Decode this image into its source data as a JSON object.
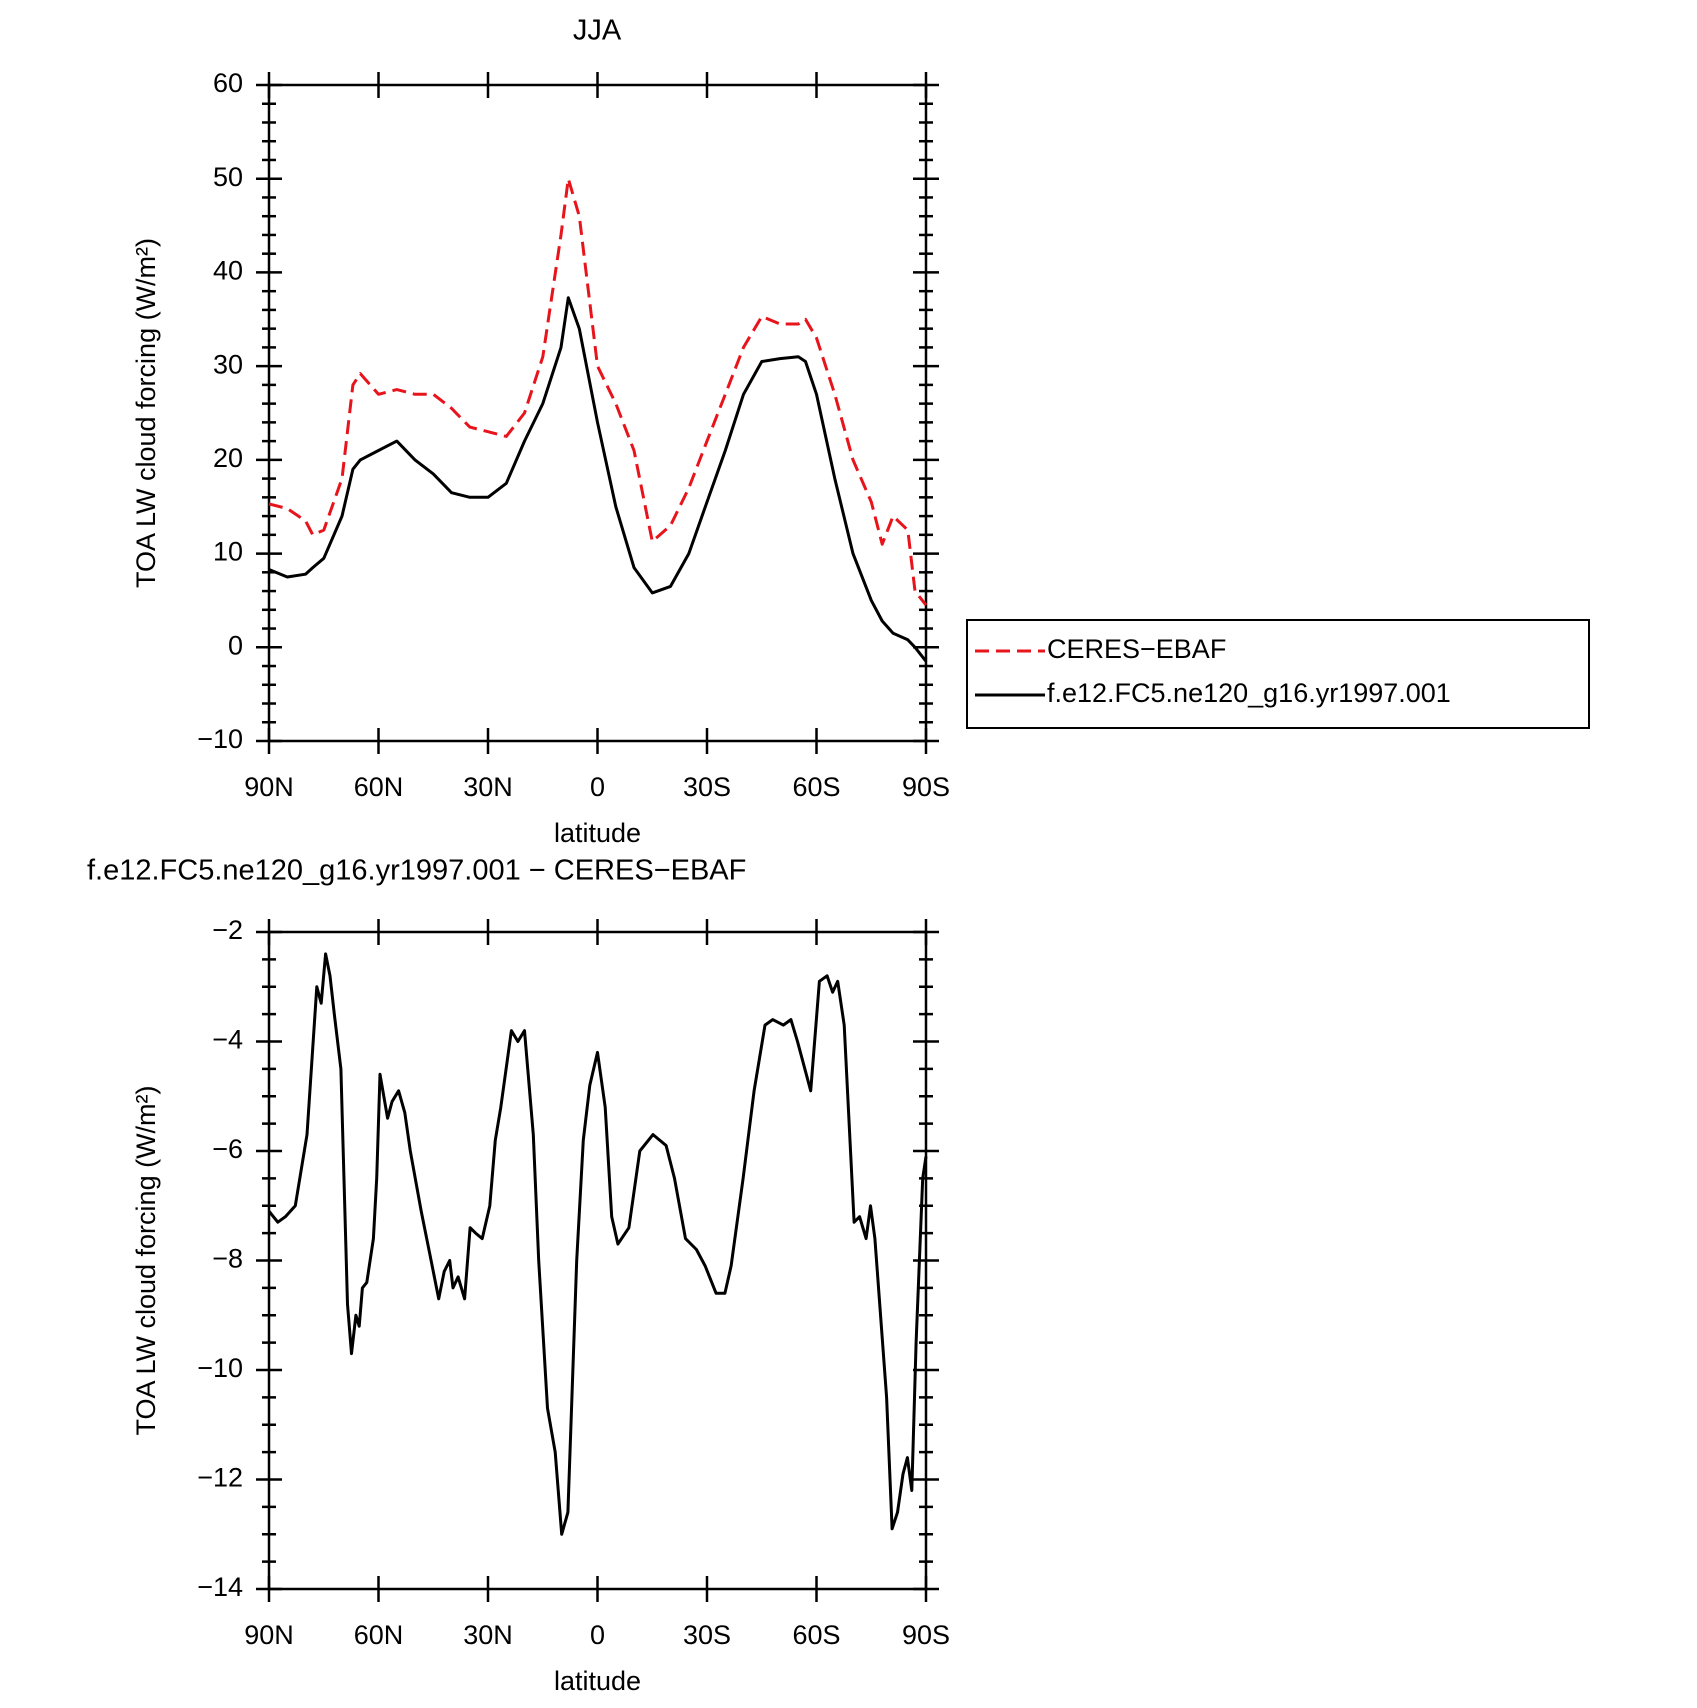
{
  "chart_data": [
    {
      "type": "line",
      "title": "JJA",
      "x_label": "latitude",
      "y_label": "TOA LW cloud forcing (W/m²)",
      "x": [
        90,
        85,
        80,
        78,
        75,
        70,
        67,
        65,
        60,
        55,
        50,
        45,
        40,
        35,
        30,
        25,
        20,
        15,
        10,
        8,
        5,
        0,
        -5,
        -10,
        -15,
        -20,
        -25,
        -30,
        -35,
        -40,
        -45,
        -50,
        -55,
        -57,
        -60,
        -65,
        -70,
        -75,
        -78,
        -81,
        -85,
        -87,
        -90
      ],
      "series": [
        {
          "name": "CERES−EBAF",
          "color": "#e8141c",
          "dash": true,
          "values": [
            15.3,
            14.8,
            13.5,
            12,
            12.5,
            18,
            28,
            29.2,
            27,
            27.5,
            27,
            27,
            25.5,
            23.5,
            23,
            22.5,
            25,
            31,
            44,
            50,
            46,
            30,
            26,
            21,
            11.3,
            13,
            17,
            22,
            27,
            32,
            35.3,
            34.5,
            34.5,
            35,
            33,
            27,
            20,
            15.5,
            11,
            14,
            12.5,
            6,
            4.5
          ]
        },
        {
          "name": "f.e12.FC5.ne120_g16.yr1997.001",
          "color": "#000000",
          "dash": false,
          "values": [
            8.3,
            7.5,
            7.8,
            8.5,
            9.5,
            14,
            19,
            20,
            21,
            22,
            20,
            18.5,
            16.5,
            16,
            16,
            17.5,
            22,
            26,
            32,
            37.3,
            34,
            24,
            15,
            8.5,
            5.8,
            6.5,
            10,
            15.5,
            21,
            27,
            30.5,
            30.8,
            31,
            30.5,
            27,
            18,
            10,
            5,
            2.8,
            1.5,
            0.8,
            0,
            -1.5
          ]
        }
      ],
      "xlim": [
        90,
        -90
      ],
      "xticks": [
        {
          "value": 90,
          "label": "90N"
        },
        {
          "value": 60,
          "label": "60N"
        },
        {
          "value": 30,
          "label": "30N"
        },
        0,
        {
          "value": -30,
          "label": "30S"
        },
        {
          "value": -60,
          "label": "60S"
        },
        {
          "value": -90,
          "label": "90S"
        }
      ],
      "ylim": [
        -10,
        60
      ],
      "yticks": [
        {
          "value": -10,
          "label": "−10"
        },
        0,
        10,
        20,
        30,
        40,
        50,
        60
      ],
      "legend": "right"
    },
    {
      "type": "line",
      "title": "f.e12.FC5.ne120_g16.yr1997.001 − CERES−EBAF",
      "x_label": "latitude",
      "y_label": "TOA LW cloud forcing (W/m²)",
      "x": [
        90,
        87.6,
        85.5,
        82.8,
        79.6,
        76.9,
        75.7,
        74.5,
        73.3,
        72.1,
        70.3,
        68.5,
        67.4,
        66.2,
        65.3,
        64.4,
        63.2,
        61.4,
        60.5,
        59.6,
        57.5,
        56.3,
        54.5,
        52.8,
        51.3,
        48.3,
        45.9,
        43.5,
        42.0,
        40.5,
        39.6,
        38.2,
        36.4,
        34.9,
        33.4,
        31.6,
        29.5,
        28.0,
        26.5,
        23.6,
        21.8,
        20.0,
        17.6,
        16.1,
        13.7,
        11.6,
        9.8,
        8.1,
        5.7,
        3.9,
        2.1,
        0,
        -2.1,
        -3.9,
        -5.6,
        -8.6,
        -11.6,
        -15.2,
        -18.8,
        -21.1,
        -24.1,
        -27.1,
        -29.5,
        -32.5,
        -34.9,
        -36.6,
        -39.9,
        -42.9,
        -45.9,
        -48.0,
        -50.9,
        -53.0,
        -54.8,
        -58.4,
        -60.8,
        -62.9,
        -64.4,
        -65.8,
        -67.6,
        -70.3,
        -71.8,
        -73.6,
        -74.8,
        -76.0,
        -79.2,
        -80.7,
        -82.2,
        -83.7,
        -84.9,
        -86.1,
        -87.3,
        -89.1,
        -90
      ],
      "values": [
        -7.1,
        -7.3,
        -7.2,
        -7.0,
        -5.7,
        -3.0,
        -3.3,
        -2.4,
        -2.8,
        -3.5,
        -4.5,
        -8.8,
        -9.7,
        -9.0,
        -9.2,
        -8.5,
        -8.4,
        -7.6,
        -6.5,
        -4.6,
        -5.4,
        -5.1,
        -4.9,
        -5.3,
        -6.0,
        -7.1,
        -7.9,
        -8.7,
        -8.2,
        -8.0,
        -8.5,
        -8.3,
        -8.7,
        -7.4,
        -7.5,
        -7.6,
        -7.0,
        -5.8,
        -5.2,
        -3.8,
        -4.0,
        -3.8,
        -5.7,
        -8.0,
        -10.7,
        -11.5,
        -13.0,
        -12.6,
        -8.0,
        -5.8,
        -4.8,
        -4.2,
        -5.2,
        -7.2,
        -7.7,
        -7.4,
        -6.0,
        -5.7,
        -5.9,
        -6.5,
        -7.6,
        -7.8,
        -8.1,
        -8.6,
        -8.6,
        -8.1,
        -6.5,
        -4.9,
        -3.7,
        -3.6,
        -3.7,
        -3.6,
        -4.0,
        -4.9,
        -2.9,
        -2.8,
        -3.1,
        -2.9,
        -3.7,
        -7.3,
        -7.2,
        -7.6,
        -7.0,
        -7.6,
        -10.5,
        -12.9,
        -12.6,
        -11.9,
        -11.6,
        -12.2,
        -9.5,
        -6.5,
        -6.1
      ],
      "color": "#000000",
      "xlim": [
        90,
        -90
      ],
      "xticks": [
        {
          "value": 90,
          "label": "90N"
        },
        {
          "value": 60,
          "label": "60N"
        },
        {
          "value": 30,
          "label": "30N"
        },
        0,
        {
          "value": -30,
          "label": "30S"
        },
        {
          "value": -60,
          "label": "60S"
        },
        {
          "value": -90,
          "label": "90S"
        }
      ],
      "ylim": [
        -14,
        -2
      ],
      "yticks": [
        {
          "value": -14,
          "label": "−14"
        },
        {
          "value": -12,
          "label": "−12"
        },
        {
          "value": -10,
          "label": "−10"
        },
        {
          "value": -8,
          "label": "−8"
        },
        {
          "value": -6,
          "label": "−6"
        },
        {
          "value": -4,
          "label": "−4"
        },
        {
          "value": -2,
          "label": "−2"
        }
      ]
    }
  ]
}
